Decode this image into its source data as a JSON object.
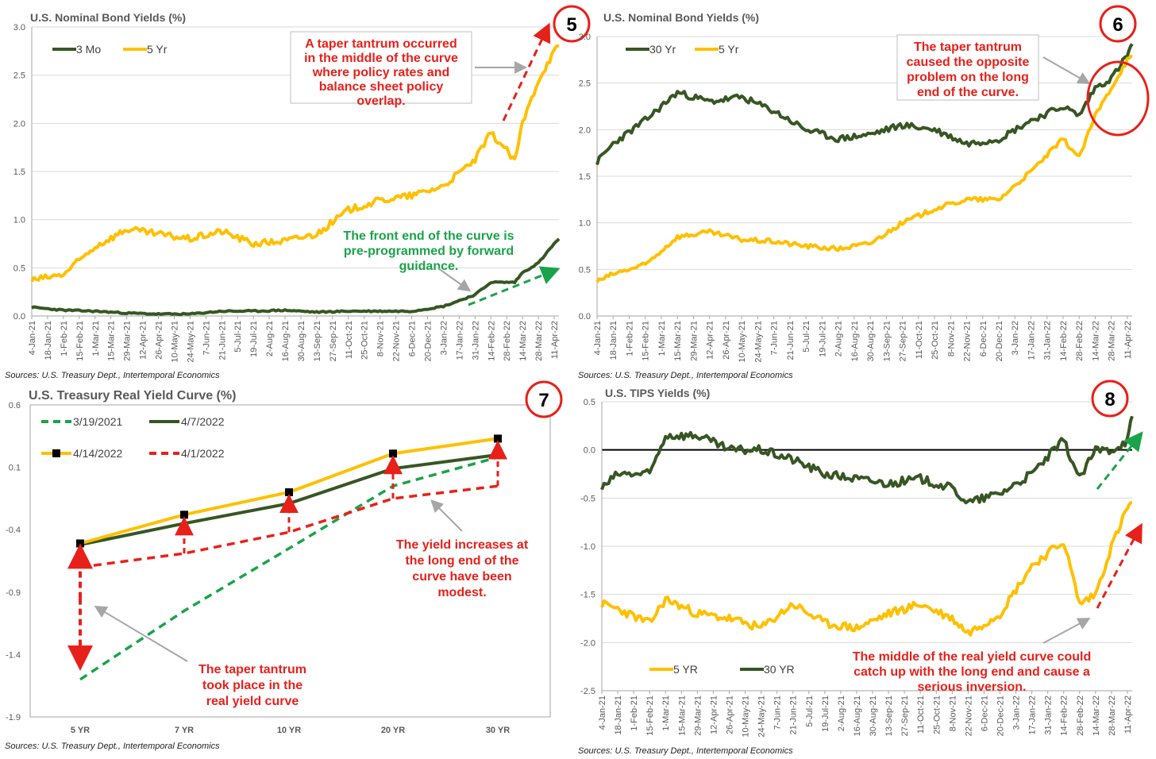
{
  "colors": {
    "gold": "#ffc000",
    "green": "#375623",
    "red": "#e8201a",
    "lightgreen": "#1aa34a",
    "grid": "#d9d9d9",
    "arrowgray": "#a6a6a6"
  },
  "charts": [
    {
      "id": "p5",
      "badge": "5",
      "title": "U.S. Nominal Bond Yields (%)",
      "source": "Sources: U.S. Treasury Dept., Intertemporal Economics",
      "legend": [
        "3 Mo",
        "5 Yr"
      ],
      "yticks": [
        "0.0",
        "0.5",
        "1.0",
        "1.5",
        "2.0",
        "2.5",
        "3.0"
      ],
      "annotation_red": [
        "A taper tantrum occurred",
        "in the middle of the curve",
        "where policy rates and",
        "balance sheet policy",
        "overlap."
      ],
      "annotation_green": [
        "The front end of the curve is",
        "pre-programmed by forward",
        "guidance."
      ]
    },
    {
      "id": "p6",
      "badge": "6",
      "title": "U.S. Nominal Bond Yields (%)",
      "source": "Sources: U.S. Treasury Dept., Intertemporal Economics",
      "legend": [
        "30 Yr",
        "5 Yr"
      ],
      "yticks": [
        "0.0",
        "0.5",
        "1.0",
        "1.5",
        "2.0",
        "2.5",
        "3.0"
      ],
      "annotation_red": [
        "The taper tantrum",
        "caused the opposite",
        "problem on the long",
        "end of the curve."
      ]
    },
    {
      "id": "p7",
      "badge": "7",
      "title": "U.S. Treasury Real Yield Curve (%)",
      "source": "Sources: U.S. Treasury Dept., Intertemporal Economics",
      "legend": [
        "3/19/2021",
        "4/7/2022",
        "4/14/2022",
        "4/1/2022"
      ],
      "yticks": [
        "-1.9",
        "-1.4",
        "-0.9",
        "-0.4",
        "0.1",
        "0.6"
      ],
      "annotation_red_1": [
        "The yield increases at",
        "the long end of the",
        "curve have been",
        "modest."
      ],
      "annotation_red_2": [
        "The taper tantrum",
        "took place in the",
        "real yield curve"
      ]
    },
    {
      "id": "p8",
      "badge": "8",
      "title": "U.S. TIPS Yields (%)",
      "source": "Sources: U.S. Treasury Dept., Intertemporal Economics",
      "legend": [
        "5 YR",
        "30 YR"
      ],
      "yticks": [
        "-2.5",
        "-2.0",
        "-1.5",
        "-1.0",
        "-0.5",
        "0.0",
        "0.5"
      ],
      "annotation_red": [
        "The middle of the real yield curve could",
        "catch up with the long end and  cause a",
        "serious inversion."
      ]
    }
  ],
  "date_ticks": [
    "4-Jan-21",
    "18-Jan-21",
    "1-Feb-21",
    "15-Feb-21",
    "1-Mar-21",
    "15-Mar-21",
    "29-Mar-21",
    "12-Apr-21",
    "26-Apr-21",
    "10-May-21",
    "24-May-21",
    "7-Jun-21",
    "21-Jun-21",
    "5-Jul-21",
    "19-Jul-21",
    "2-Aug-21",
    "16-Aug-21",
    "30-Aug-21",
    "13-Sep-21",
    "27-Sep-21",
    "11-Oct-21",
    "25-Oct-21",
    "8-Nov-21",
    "22-Nov-21",
    "6-Dec-21",
    "20-Dec-21",
    "3-Jan-22",
    "17-Jan-22",
    "31-Jan-22",
    "14-Feb-22",
    "28-Feb-22",
    "14-Mar-22",
    "28-Mar-22",
    "11-Apr-22"
  ],
  "chart_data": [
    {
      "type": "line",
      "title": "U.S. Nominal Bond Yields (%)",
      "ylim": [
        0,
        3
      ],
      "x_dates": [
        "4-Jan-21",
        "1-Feb-21",
        "1-Mar-21",
        "29-Mar-21",
        "26-Apr-21",
        "24-May-21",
        "21-Jun-21",
        "19-Jul-21",
        "16-Aug-21",
        "13-Sep-21",
        "11-Oct-21",
        "8-Nov-21",
        "6-Dec-21",
        "3-Jan-22",
        "31-Jan-22",
        "14-Feb-22",
        "28-Feb-22",
        "7-Mar-22",
        "14-Mar-22",
        "28-Mar-22",
        "11-Apr-22",
        "15-Apr-22"
      ],
      "series": [
        {
          "name": "3 Mo",
          "values": [
            0.09,
            0.06,
            0.05,
            0.03,
            0.02,
            0.02,
            0.05,
            0.05,
            0.06,
            0.04,
            0.05,
            0.05,
            0.05,
            0.1,
            0.22,
            0.35,
            0.35,
            0.35,
            0.45,
            0.55,
            0.75,
            0.8
          ]
        },
        {
          "name": "5 Yr",
          "values": [
            0.37,
            0.43,
            0.72,
            0.9,
            0.85,
            0.8,
            0.88,
            0.75,
            0.78,
            0.85,
            1.1,
            1.2,
            1.25,
            1.35,
            1.62,
            1.9,
            1.72,
            1.6,
            2.0,
            2.45,
            2.75,
            2.8
          ]
        }
      ]
    },
    {
      "type": "line",
      "title": "U.S. Nominal Bond Yields (%)",
      "ylim": [
        0,
        3
      ],
      "x_dates": [
        "4-Jan-21",
        "18-Jan-21",
        "15-Feb-21",
        "15-Mar-21",
        "12-Apr-21",
        "10-May-21",
        "7-Jun-21",
        "5-Jul-21",
        "2-Aug-21",
        "30-Aug-21",
        "27-Sep-21",
        "25-Oct-21",
        "22-Nov-21",
        "20-Dec-21",
        "17-Jan-22",
        "14-Feb-22",
        "28-Feb-22",
        "14-Mar-22",
        "28-Mar-22",
        "11-Apr-22",
        "15-Apr-22"
      ],
      "series": [
        {
          "name": "30 Yr",
          "values": [
            1.65,
            1.85,
            2.1,
            2.4,
            2.3,
            2.35,
            2.2,
            2.0,
            1.9,
            1.95,
            2.05,
            2.0,
            1.85,
            1.9,
            2.1,
            2.25,
            2.15,
            2.45,
            2.55,
            2.8,
            2.92
          ]
        },
        {
          "name": "5 Yr",
          "values": [
            0.37,
            0.45,
            0.55,
            0.85,
            0.9,
            0.82,
            0.8,
            0.75,
            0.72,
            0.78,
            1.0,
            1.15,
            1.25,
            1.25,
            1.55,
            1.9,
            1.7,
            2.15,
            2.45,
            2.75,
            2.78
          ]
        }
      ]
    },
    {
      "type": "line",
      "title": "U.S. Treasury Real Yield Curve (%)",
      "categories": [
        "5 YR",
        "7 YR",
        "10 YR",
        "20 YR",
        "30 YR"
      ],
      "ylim": [
        -1.9,
        0.6
      ],
      "series": [
        {
          "name": "3/19/2021",
          "values": [
            -1.6,
            -1.05,
            -0.55,
            -0.05,
            0.18
          ]
        },
        {
          "name": "4/7/2022",
          "values": [
            -0.52,
            -0.35,
            -0.19,
            0.09,
            0.2
          ]
        },
        {
          "name": "4/14/2022",
          "values": [
            -0.51,
            -0.28,
            -0.1,
            0.21,
            0.33
          ]
        },
        {
          "name": "4/1/2022",
          "values": [
            -0.7,
            -0.59,
            -0.42,
            -0.15,
            -0.05
          ]
        }
      ]
    },
    {
      "type": "line",
      "title": "U.S. TIPS Yields (%)",
      "ylim": [
        -2.5,
        0.5
      ],
      "x_dates": [
        "4-Jan-21",
        "18-Jan-21",
        "15-Feb-21",
        "1-Mar-21",
        "29-Mar-21",
        "26-Apr-21",
        "24-May-21",
        "21-Jun-21",
        "19-Jul-21",
        "16-Aug-21",
        "13-Sep-21",
        "11-Oct-21",
        "8-Nov-21",
        "22-Nov-21",
        "20-Dec-21",
        "17-Jan-22",
        "14-Feb-22",
        "28-Feb-22",
        "14-Mar-22",
        "28-Mar-22",
        "11-Apr-22",
        "15-Apr-22"
      ],
      "series": [
        {
          "name": "5 YR",
          "values": [
            -1.6,
            -1.65,
            -1.8,
            -1.55,
            -1.7,
            -1.75,
            -1.85,
            -1.6,
            -1.8,
            -1.85,
            -1.7,
            -1.6,
            -1.75,
            -1.9,
            -1.7,
            -1.2,
            -0.95,
            -1.6,
            -1.5,
            -1.0,
            -0.6,
            -0.55
          ]
        },
        {
          "name": "30 YR",
          "values": [
            -0.4,
            -0.25,
            -0.25,
            0.15,
            0.15,
            0.0,
            0.0,
            -0.1,
            -0.25,
            -0.3,
            -0.35,
            -0.3,
            -0.4,
            -0.55,
            -0.45,
            -0.25,
            0.1,
            -0.3,
            0.0,
            0.0,
            0.1,
            0.35
          ]
        }
      ]
    }
  ]
}
